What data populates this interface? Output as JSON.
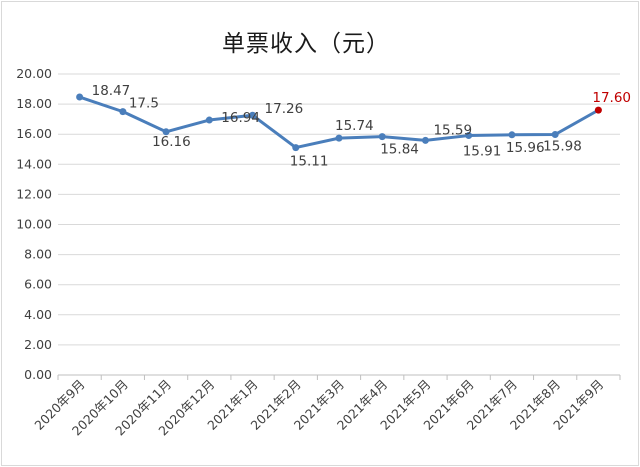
{
  "chart_data": {
    "type": "line",
    "title": "单票收入（元）",
    "xlabel": "",
    "ylabel": "",
    "categories": [
      "2020年9月",
      "2020年10月",
      "2020年11月",
      "2020年12月",
      "2021年1月",
      "2021年2月",
      "2021年3月",
      "2021年4月",
      "2021年5月",
      "2021年6月",
      "2021年7月",
      "2021年8月",
      "2021年9月"
    ],
    "series": [
      {
        "values": [
          18.47,
          17.5,
          16.16,
          16.94,
          17.26,
          15.11,
          15.74,
          15.84,
          15.59,
          15.91,
          15.96,
          15.98,
          17.6
        ],
        "labels": [
          "18.47",
          "17.5",
          "16.16",
          "16.94",
          "17.26",
          "15.11",
          "15.74",
          "15.84",
          "15.59",
          "15.91",
          "15.96",
          "15.98",
          "17.60"
        ]
      }
    ],
    "ylim": [
      0,
      20
    ],
    "yticks": [
      "0.00",
      "2.00",
      "4.00",
      "6.00",
      "8.00",
      "10.00",
      "12.00",
      "14.00",
      "16.00",
      "18.00",
      "20.00"
    ],
    "grid": true,
    "legend": "none",
    "colors": {
      "line": "#4a7ebb",
      "highlight": "#c00000",
      "grid": "#d9d9d9",
      "text": "#404040"
    }
  }
}
